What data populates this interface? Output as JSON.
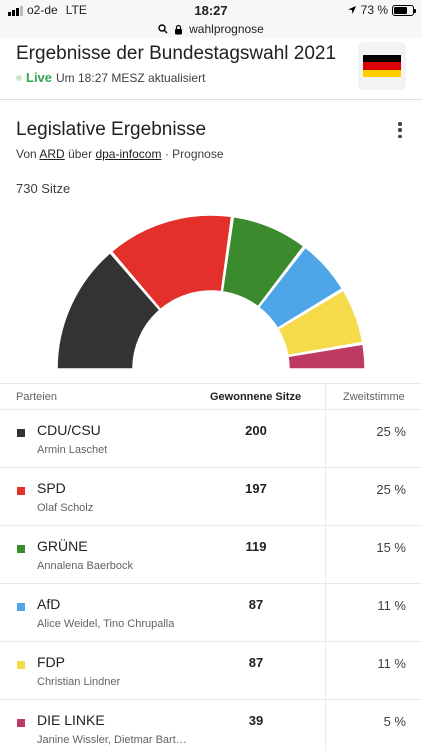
{
  "status_bar": {
    "carrier": "o2-de",
    "network": "LTE",
    "time": "18:27",
    "battery_label": "73 %",
    "battery_level": 0.73
  },
  "url_bar": {
    "text": "wahlprognose"
  },
  "header": {
    "title": "Ergebnisse der Bundestagswahl 2021",
    "live_label": "Live",
    "updated_text": "Um 18:27 MESZ aktualisiert"
  },
  "section": {
    "title": "Legislative Ergebnisse",
    "source_prefix": "Von",
    "source_ard": "ARD",
    "source_via": "über",
    "source_dpa": "dpa-infocom",
    "source_suffix": "· Prognose",
    "total_seats_label": "730 Sitze"
  },
  "table": {
    "col_party": "Parteien",
    "col_seats": "Gewonnene Sitze",
    "col_votes": "Zweitstimme"
  },
  "parties": [
    {
      "name": "CDU/CSU",
      "leader": "Armin Laschet",
      "seats": "200",
      "votes": "25 %",
      "color": "#333333"
    },
    {
      "name": "SPD",
      "leader": "Olaf Scholz",
      "seats": "197",
      "votes": "25 %",
      "color": "#e3302b"
    },
    {
      "name": "GRÜNE",
      "leader": "Annalena Baerbock",
      "seats": "119",
      "votes": "15 %",
      "color": "#3c8a2e"
    },
    {
      "name": "AfD",
      "leader": "Alice Weidel, Tino Chrupalla",
      "seats": "87",
      "votes": "11 %",
      "color": "#4ea6e8"
    },
    {
      "name": "FDP",
      "leader": "Christian Lindner",
      "seats": "87",
      "votes": "11 %",
      "color": "#f5da4a"
    },
    {
      "name": "DIE LINKE",
      "leader": "Janine Wissler, Dietmar Bartsch",
      "seats": "39",
      "votes": "5 %",
      "color": "#be3a62"
    }
  ],
  "chart_data": {
    "type": "pie",
    "shape": "half-donut",
    "total": 730,
    "categories": [
      "CDU/CSU",
      "SPD",
      "GRÜNE",
      "AfD",
      "FDP",
      "DIE LINKE"
    ],
    "values": [
      200,
      197,
      119,
      87,
      87,
      39
    ],
    "colors": [
      "#333333",
      "#e3302b",
      "#3c8a2e",
      "#4ea6e8",
      "#f5da4a",
      "#be3a62"
    ],
    "legend": "none"
  },
  "colors": {
    "live": "#34a853",
    "flag_black": "#000000",
    "flag_red": "#dd0000",
    "flag_gold": "#ffce00"
  },
  "icons": [
    "signal-icon",
    "location-arrow-icon",
    "battery-icon",
    "search-icon",
    "lock-icon",
    "more-vert-icon",
    "flag-germany-icon"
  ]
}
